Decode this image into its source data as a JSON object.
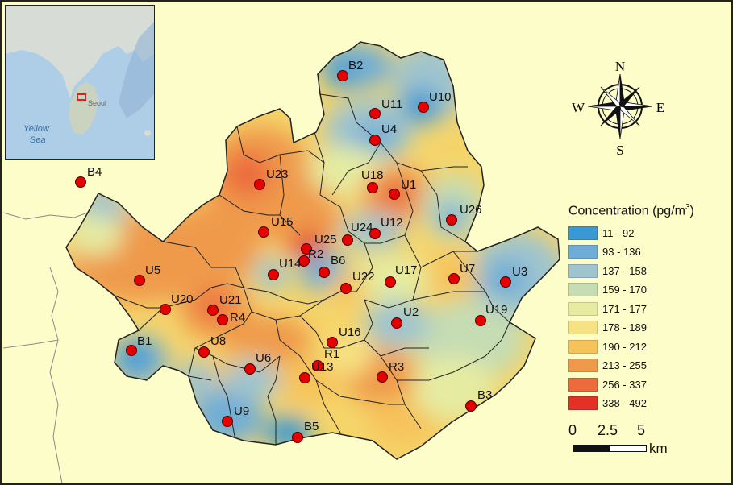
{
  "map": {
    "legend": {
      "title": "Concentration (pg/m",
      "title_sup": "3",
      "title_close": ")",
      "classes": [
        {
          "range": "11 - 92",
          "color": "#3a98d3"
        },
        {
          "range": "93 - 136",
          "color": "#6fadd6"
        },
        {
          "range": "137 - 158",
          "color": "#9fc4cf"
        },
        {
          "range": "159 - 170",
          "color": "#c5dcb4"
        },
        {
          "range": "171 - 177",
          "color": "#e5eca2"
        },
        {
          "range": "178 - 189",
          "color": "#f6e283"
        },
        {
          "range": "190 - 212",
          "color": "#f6c35a"
        },
        {
          "range": "213 - 255",
          "color": "#ef9a4b"
        },
        {
          "range": "256 - 337",
          "color": "#ec6a3c"
        },
        {
          "range": "338 - 492",
          "color": "#e23226"
        }
      ]
    },
    "compass": {
      "n": "N",
      "s": "S",
      "e": "E",
      "w": "W"
    },
    "scale": {
      "ticks": [
        "0",
        "2.5",
        "5"
      ],
      "unit": "km"
    },
    "inset": {
      "sea_label_1": "Yellow",
      "sea_label_2": "Sea",
      "city_label": "Seoul"
    },
    "stations": [
      {
        "id": "B2"
      },
      {
        "id": "U11"
      },
      {
        "id": "U10"
      },
      {
        "id": "U4"
      },
      {
        "id": "U18"
      },
      {
        "id": "U1"
      },
      {
        "id": "U23"
      },
      {
        "id": "B4"
      },
      {
        "id": "U26"
      },
      {
        "id": "U15"
      },
      {
        "id": "U24"
      },
      {
        "id": "U12"
      },
      {
        "id": "U25"
      },
      {
        "id": "R2"
      },
      {
        "id": "U14"
      },
      {
        "id": "B6"
      },
      {
        "id": "U5"
      },
      {
        "id": "U22"
      },
      {
        "id": "U17"
      },
      {
        "id": "U7"
      },
      {
        "id": "U3"
      },
      {
        "id": "U20"
      },
      {
        "id": "U21"
      },
      {
        "id": "R4"
      },
      {
        "id": "U19"
      },
      {
        "id": "U2"
      },
      {
        "id": "B1"
      },
      {
        "id": "U8"
      },
      {
        "id": "U16"
      },
      {
        "id": "R1"
      },
      {
        "id": "U6"
      },
      {
        "id": "U13"
      },
      {
        "id": "R3"
      },
      {
        "id": "B3"
      },
      {
        "id": "U9"
      },
      {
        "id": "B5"
      }
    ]
  }
}
